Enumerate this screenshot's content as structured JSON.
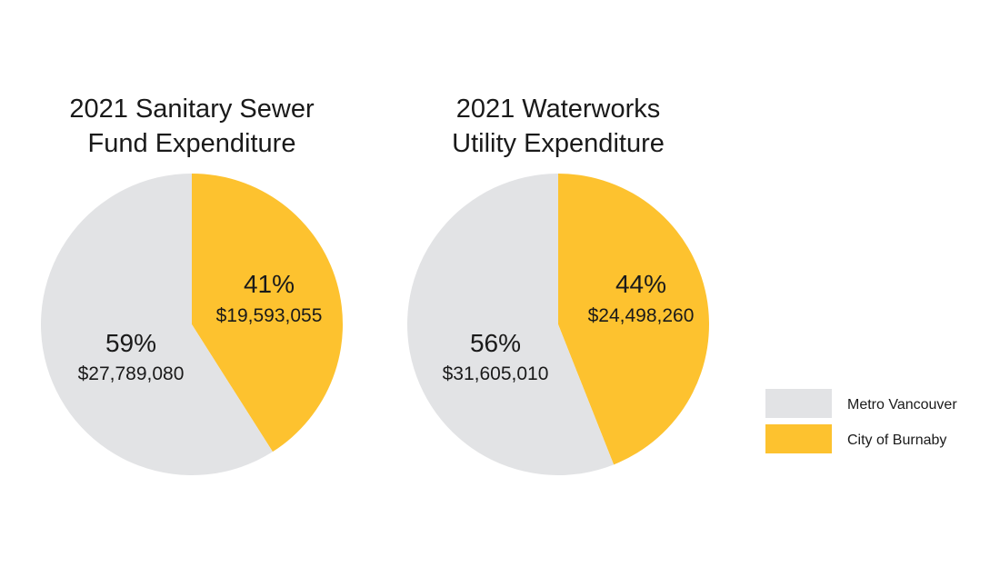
{
  "colors": {
    "metro_vancouver": "#e2e3e5",
    "city_of_burnaby": "#fdc22f"
  },
  "legend": {
    "placement": "bottom-right",
    "items": [
      {
        "label": "Metro Vancouver",
        "color": "#e2e3e5"
      },
      {
        "label": "City of Burnaby",
        "color": "#fdc22f"
      }
    ]
  },
  "chart_data": [
    {
      "type": "pie",
      "title_lines": [
        "2021 Sanitary Sewer",
        "Fund Expenditure"
      ],
      "slices": [
        {
          "name": "City of Burnaby",
          "percent": 41,
          "percent_label": "41%",
          "value": 19593055,
          "value_label": "$19,593,055",
          "color": "#fdc22f"
        },
        {
          "name": "Metro Vancouver",
          "percent": 59,
          "percent_label": "59%",
          "value": 27789080,
          "value_label": "$27,789,080",
          "color": "#e2e3e5"
        }
      ]
    },
    {
      "type": "pie",
      "title_lines": [
        "2021 Waterworks",
        "Utility Expenditure"
      ],
      "slices": [
        {
          "name": "City of Burnaby",
          "percent": 44,
          "percent_label": "44%",
          "value": 24498260,
          "value_label": "$24,498,260",
          "color": "#fdc22f"
        },
        {
          "name": "Metro Vancouver",
          "percent": 56,
          "percent_label": "56%",
          "value": 31605010,
          "value_label": "$31,605,010",
          "color": "#e2e3e5"
        }
      ]
    }
  ]
}
